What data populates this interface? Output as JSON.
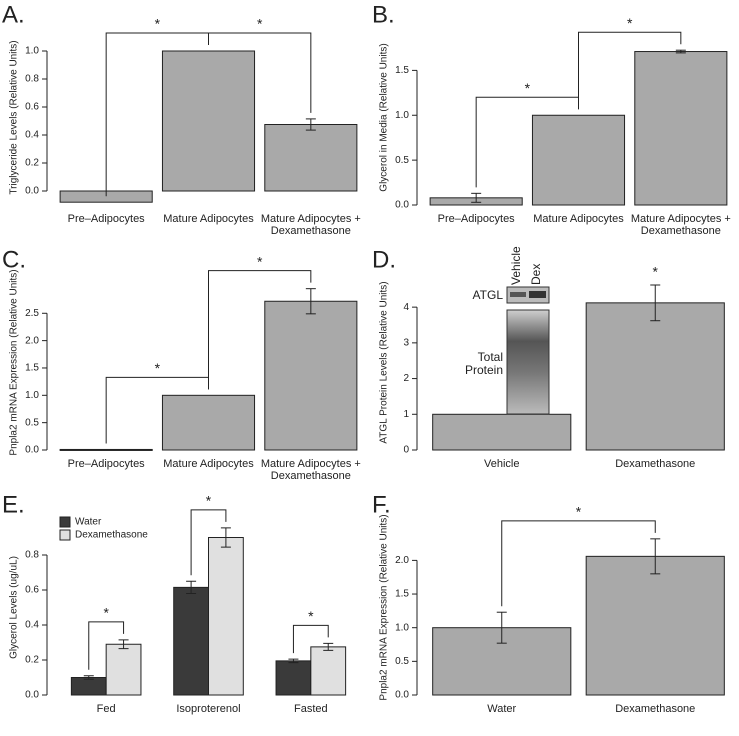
{
  "chart_data": [
    {
      "type": "bar",
      "label": "A.",
      "ylabel": "Triglyceride Levels (Relative Units)",
      "categories": [
        "Pre–Adipocytes",
        "Mature Adipocytes",
        "Mature Adipocytes + Dexamethasone"
      ],
      "values": [
        -0.08,
        1.0,
        0.475
      ],
      "errors": [
        null,
        null,
        0.04
      ],
      "color": "#a9a9a9",
      "ylim": [
        -0.1,
        1.15
      ],
      "yticks": [
        {
          "value": 0,
          "label": "0.0"
        },
        0.2,
        0.4,
        0.6,
        0.8,
        {
          "value": 1,
          "label": "1.0"
        }
      ],
      "significance": [
        {
          "from": 0,
          "to": 1,
          "label": "*"
        },
        {
          "from": 1,
          "to": 2,
          "label": "*"
        }
      ]
    },
    {
      "type": "bar",
      "label": "B.",
      "ylabel": "Glycerol in Media (Relative Units)",
      "categories": [
        "Pre–Adipocytes",
        "Mature Adipocytes",
        "Mature Adipocytes + Dexamethasone"
      ],
      "values": [
        0.08,
        1.0,
        1.71
      ],
      "errors": [
        0.05,
        null,
        0.015
      ],
      "color": "#a9a9a9",
      "ylim": [
        0,
        1.95
      ],
      "yticks": [
        {
          "value": 0,
          "label": "0.0"
        },
        0.5,
        {
          "value": 1,
          "label": "1.0"
        },
        1.5
      ],
      "significance": [
        {
          "from": 0,
          "to": 1,
          "label": "*"
        },
        {
          "from": 1,
          "to": 2,
          "label": "*"
        }
      ]
    },
    {
      "type": "bar",
      "label": "C.",
      "ylabel": "Pnpla2 mRNA Expression (Relative Units)",
      "categories": [
        "Pre–Adipocytes",
        "Mature Adipocytes",
        "Mature Adipocytes + Dexamethasone"
      ],
      "values": [
        0.01,
        1.0,
        2.72
      ],
      "errors": [
        null,
        null,
        0.23
      ],
      "color": "#a9a9a9",
      "ylim": [
        0,
        3.2
      ],
      "yticks": [
        {
          "value": 0,
          "label": "0.0"
        },
        0.5,
        {
          "value": 1,
          "label": "1.0"
        },
        1.5,
        {
          "value": 2,
          "label": "2.0"
        },
        2.5
      ],
      "significance": [
        {
          "from": 0,
          "to": 1,
          "label": "*"
        },
        {
          "from": 1,
          "to": 2,
          "label": "*"
        }
      ]
    },
    {
      "type": "bar",
      "label": "D.",
      "ylabel": "ATGL Protein Levels (Relative Units)",
      "categories": [
        "Vehicle",
        "Dexamethasone"
      ],
      "values": [
        1.0,
        4.12
      ],
      "errors": [
        null,
        0.5
      ],
      "color": "#a9a9a9",
      "ylim": [
        0,
        4.9
      ],
      "yticks": [
        0,
        1,
        2,
        3,
        4
      ],
      "significance": [
        {
          "from": 1,
          "to": 1,
          "label": "*"
        }
      ],
      "inset": {
        "lanes": [
          "Vehicle",
          "Dex"
        ],
        "bands": [
          "ATGL",
          "Total Protein"
        ]
      }
    },
    {
      "type": "bar",
      "label": "E.",
      "ylabel": "Glycerol Levels (ug/uL)",
      "categories": [
        "Fed",
        "Isoproterenol",
        "Fasted"
      ],
      "series": [
        {
          "name": "Water",
          "color": "#3a3a3a",
          "values": [
            0.1,
            0.615,
            0.195
          ],
          "errors": [
            0.01,
            0.035,
            0.01
          ]
        },
        {
          "name": "Dexamethasone",
          "color": "#e0e0e0",
          "values": [
            0.29,
            0.9,
            0.275
          ],
          "errors": [
            0.025,
            0.055,
            0.02
          ]
        }
      ],
      "ylim": [
        0,
        1.0
      ],
      "yticks": [
        {
          "value": 0,
          "label": "0.0"
        },
        0.2,
        0.4,
        0.6,
        0.8
      ],
      "legend": "top-left",
      "significance": [
        {
          "from": 0,
          "to": 0,
          "label": "*"
        },
        {
          "from": 1,
          "to": 1,
          "label": "*"
        },
        {
          "from": 2,
          "to": 2,
          "label": "*"
        }
      ]
    },
    {
      "type": "bar",
      "label": "F.",
      "ylabel": "Pnpla2 mRNA Expression (Relative Units)",
      "categories": [
        "Water",
        "Dexamethasone"
      ],
      "values": [
        1.0,
        2.06
      ],
      "errors": [
        0.23,
        0.26
      ],
      "color": "#a9a9a9",
      "ylim": [
        0,
        2.6
      ],
      "yticks": [
        {
          "value": 0,
          "label": "0.0"
        },
        0.5,
        {
          "value": 1,
          "label": "1.0"
        },
        1.5,
        {
          "value": 2,
          "label": "2.0"
        }
      ],
      "significance": [
        {
          "from": 0,
          "to": 1,
          "label": "*"
        }
      ]
    }
  ]
}
